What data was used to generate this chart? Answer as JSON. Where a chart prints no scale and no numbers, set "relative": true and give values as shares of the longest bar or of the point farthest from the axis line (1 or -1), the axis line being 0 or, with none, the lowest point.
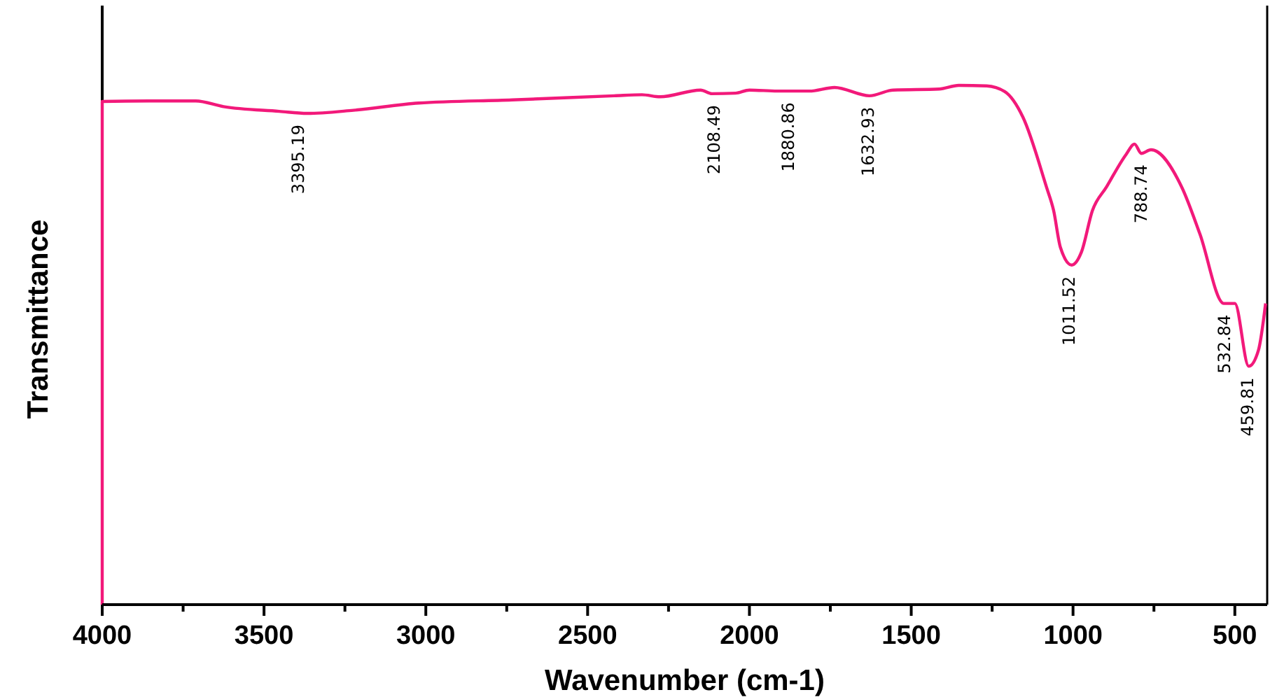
{
  "chart_data": {
    "type": "line",
    "xlabel": "Wavenumber (cm-1)",
    "ylabel": "Transmittance",
    "relative": true,
    "xlim": [
      4000,
      400
    ],
    "xticks": [
      4000,
      {
        "value": 3750,
        "label": null
      },
      3500,
      {
        "value": 3250,
        "label": null
      },
      3000,
      {
        "value": 2750,
        "label": null
      },
      2500,
      {
        "value": 2250,
        "label": null
      },
      2000,
      {
        "value": 1750,
        "label": null
      },
      1500,
      {
        "value": 1250,
        "label": null
      },
      1000,
      {
        "value": 750,
        "label": null
      },
      500
    ],
    "series": [
      {
        "color": "#f2197a",
        "x": [
          4000,
          4000,
          3855,
          3711,
          3625,
          3453,
          3366,
          3224,
          3022,
          2733,
          2418,
          2332,
          2276,
          2151,
          2116,
          2043,
          2000,
          1914,
          1815,
          1737,
          1629,
          1556,
          1414,
          1353,
          1267,
          1211,
          1155,
          1082,
          1060,
          1039,
          1004,
          974,
          940,
          897,
          836,
          810,
          789,
          759,
          664,
          608,
          534,
          500,
          457,
          427,
          405
        ],
        "values": [
          0,
          0.969,
          0.97,
          0.97,
          0.959,
          0.95,
          0.946,
          0.952,
          0.966,
          0.972,
          0.98,
          0.982,
          0.978,
          0.991,
          0.984,
          0.985,
          0.991,
          0.989,
          0.989,
          0.996,
          0.98,
          0.991,
          0.993,
          1,
          0.999,
          0.988,
          0.939,
          0.804,
          0.759,
          0.688,
          0.654,
          0.679,
          0.759,
          0.804,
          0.867,
          0.887,
          0.869,
          0.876,
          0.804,
          0.714,
          0.58,
          0.58,
          0.459,
          0.49,
          0.58
        ]
      }
    ],
    "annotations": [
      {
        "text": "3395.19",
        "x": 3395.19,
        "y": 0.946
      },
      {
        "text": "2108.49",
        "x": 2108.49,
        "y": 0.984
      },
      {
        "text": "1880.86",
        "x": 1880.86,
        "y": 0.989
      },
      {
        "text": "1632.93",
        "x": 1632.93,
        "y": 0.98
      },
      {
        "text": "1011.52",
        "x": 1011.52,
        "y": 0.654
      },
      {
        "text": "788.74",
        "x": 788.74,
        "y": 0.869
      },
      {
        "text": "532.84",
        "x": 532.84,
        "y": 0.58
      },
      {
        "text": "459.81",
        "x": 459.81,
        "y": 0.459
      }
    ]
  }
}
